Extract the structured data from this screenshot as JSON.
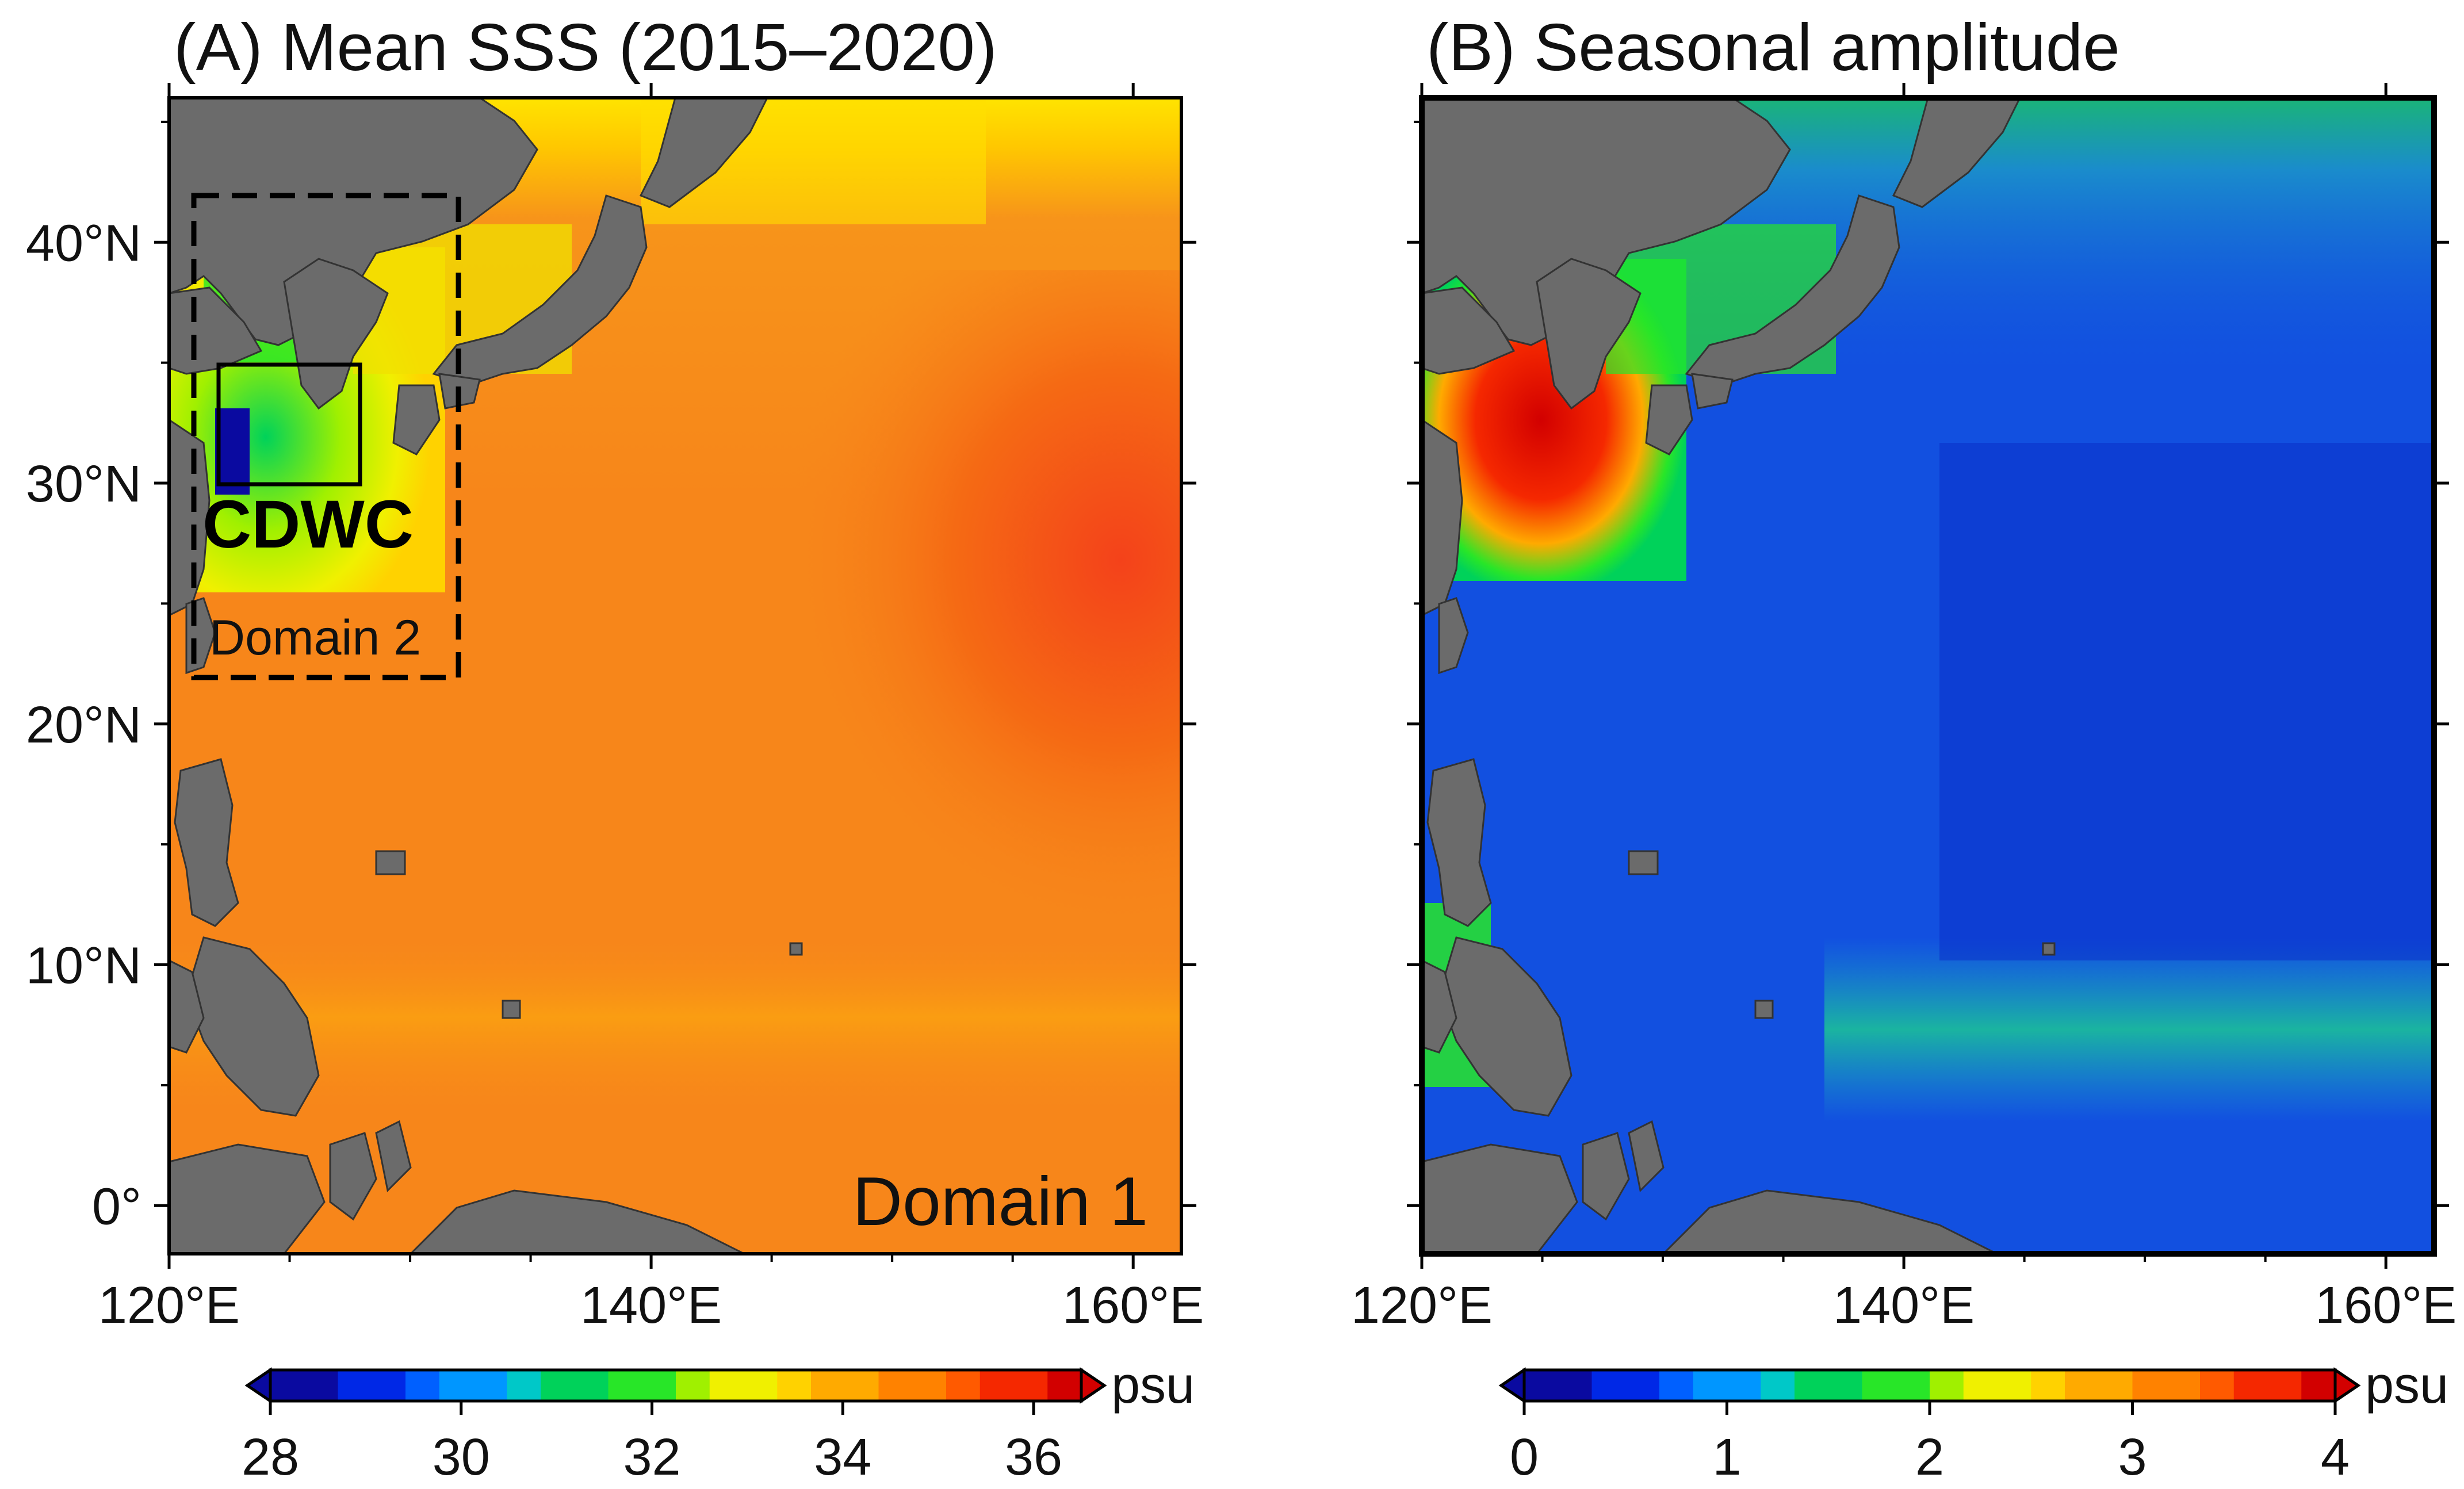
{
  "panels": [
    {
      "title": "(A) Mean SSS (2015–2020)",
      "x_ticks": [
        "120°E",
        "140°E",
        "160°E"
      ],
      "y_ticks": [
        "40°N",
        "30°N",
        "20°N",
        "10°N",
        "0°"
      ],
      "annotations": {
        "cdwc": "CDWC",
        "domain2": "Domain 2",
        "domain1": "Domain 1"
      },
      "colorbar": {
        "ticks": [
          "28",
          "30",
          "32",
          "34",
          "36"
        ],
        "unit": "psu",
        "range": [
          28,
          36.5
        ]
      }
    },
    {
      "title": "(B) Seasonal amplitude",
      "x_ticks": [
        "120°E",
        "140°E",
        "160°E"
      ],
      "colorbar": {
        "ticks": [
          "0",
          "1",
          "2",
          "3",
          "4"
        ],
        "unit": "psu",
        "range": [
          0,
          4
        ]
      }
    }
  ],
  "map_extent": {
    "lon": [
      120,
      162
    ],
    "lat": [
      -2,
      46
    ]
  },
  "colors": {
    "land": "#6b6b6b",
    "rainbow": [
      "#0a0aa0",
      "#0028e6",
      "#0060ff",
      "#0096ff",
      "#00c8c8",
      "#00d25a",
      "#28e628",
      "#a0f000",
      "#f0f000",
      "#ffd200",
      "#ffaa00",
      "#ff8200",
      "#ff5a00",
      "#f52800",
      "#d20000"
    ],
    "sss_ocean_main": "#f7861a",
    "sss_ocean_high": "#f55a10",
    "amp_ocean_main": "#1250e0",
    "amp_ocean_low": "#0a30c8"
  }
}
